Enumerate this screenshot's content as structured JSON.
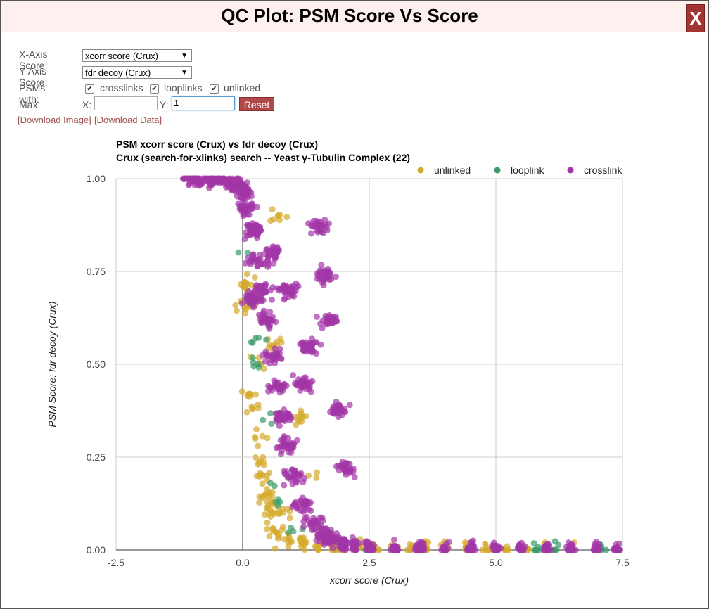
{
  "window": {
    "title": "QC Plot: PSM Score Vs Score",
    "close_label": "X"
  },
  "controls": {
    "x_axis_label": "X-Axis Score:",
    "x_axis_value": "xcorr score (Crux)",
    "y_axis_label": "Y-Axis Score:",
    "y_axis_value": "fdr decoy (Crux)",
    "psms_label": "PSMs with:",
    "checkboxes": [
      {
        "label": "crosslinks",
        "checked": true
      },
      {
        "label": "looplinks",
        "checked": true
      },
      {
        "label": "unlinked",
        "checked": true
      }
    ],
    "max_label": "Max:",
    "max_x_label": "X:",
    "max_x_value": "",
    "max_y_label": "Y:",
    "max_y_value": "1",
    "reset_label": "Reset",
    "download_image": "[Download Image]",
    "download_data": "[Download Data]"
  },
  "chart_data": {
    "type": "scatter",
    "title": "PSM xcorr score (Crux) vs fdr decoy (Crux)",
    "subtitle": "Crux (search-for-xlinks) search -- Yeast γ-Tubulin Complex (22)",
    "xlabel": "xcorr score (Crux)",
    "ylabel": "PSM Score: fdr decoy (Crux)",
    "xlim": [
      -2.5,
      7.5
    ],
    "ylim": [
      0,
      1
    ],
    "xticks": [
      "-2.5",
      "0.0",
      "2.5",
      "5.0",
      "7.5"
    ],
    "yticks": [
      "0.00",
      "0.25",
      "0.50",
      "0.75",
      "1.00"
    ],
    "grid": true,
    "legend_position": "top-right",
    "series": [
      {
        "name": "unlinked",
        "color": "#d4a92c",
        "points": [
          [
            0.05,
            0.72
          ],
          [
            0.1,
            0.66
          ],
          [
            0.15,
            0.42
          ],
          [
            0.2,
            0.38
          ],
          [
            0.25,
            0.3
          ],
          [
            0.3,
            0.28
          ],
          [
            0.35,
            0.24
          ],
          [
            0.4,
            0.2
          ],
          [
            0.45,
            0.15
          ],
          [
            0.5,
            0.12
          ],
          [
            0.55,
            0.09
          ],
          [
            0.6,
            0.05
          ],
          [
            0.7,
            0.03
          ],
          [
            0.9,
            0.02
          ],
          [
            1.2,
            0.02
          ],
          [
            1.5,
            0.01
          ],
          [
            1.8,
            0.01
          ],
          [
            2.0,
            0.01
          ],
          [
            2.3,
            0.005
          ],
          [
            2.6,
            0.002
          ],
          [
            3.0,
            0.001
          ],
          [
            3.3,
            0.001
          ],
          [
            3.6,
            0.001
          ],
          [
            4.0,
            0.0
          ],
          [
            4.4,
            0.0
          ],
          [
            4.8,
            0.0
          ],
          [
            5.2,
            0.0
          ],
          [
            5.6,
            0.0
          ],
          [
            6.0,
            0.0
          ],
          [
            6.5,
            0.0
          ],
          [
            0.7,
            0.9
          ],
          [
            0.6,
            0.55
          ],
          [
            1.1,
            0.35
          ],
          [
            1.3,
            0.2
          ],
          [
            0.8,
            0.1
          ],
          [
            0.35,
            0.5
          ]
        ]
      },
      {
        "name": "looplink",
        "color": "#3a9a6a",
        "points": [
          [
            0.1,
            0.8
          ],
          [
            0.25,
            0.57
          ],
          [
            0.3,
            0.5
          ],
          [
            0.4,
            0.35
          ],
          [
            0.55,
            0.18
          ],
          [
            0.7,
            0.12
          ],
          [
            1.0,
            0.05
          ],
          [
            1.9,
            0.02
          ],
          [
            2.5,
            0.015
          ],
          [
            4.5,
            0.0
          ],
          [
            5.8,
            0.0
          ],
          [
            6.2,
            0.0
          ],
          [
            7.1,
            0.0
          ]
        ]
      },
      {
        "name": "crosslink",
        "color": "#a236a6",
        "points": [
          [
            -1.0,
            1.0
          ],
          [
            -0.8,
            1.0
          ],
          [
            -0.6,
            0.998
          ],
          [
            -0.4,
            0.995
          ],
          [
            -0.2,
            0.99
          ],
          [
            -0.1,
            0.98
          ],
          [
            0.0,
            0.96
          ],
          [
            0.1,
            0.92
          ],
          [
            0.2,
            0.86
          ],
          [
            0.3,
            0.78
          ],
          [
            0.4,
            0.7
          ],
          [
            0.5,
            0.62
          ],
          [
            0.6,
            0.52
          ],
          [
            0.7,
            0.44
          ],
          [
            0.8,
            0.36
          ],
          [
            0.9,
            0.28
          ],
          [
            1.0,
            0.2
          ],
          [
            1.2,
            0.12
          ],
          [
            1.4,
            0.07
          ],
          [
            1.6,
            0.04
          ],
          [
            1.8,
            0.025
          ],
          [
            2.0,
            0.015
          ],
          [
            2.2,
            0.01
          ],
          [
            2.5,
            0.006
          ],
          [
            3.0,
            0.003
          ],
          [
            3.5,
            0.001
          ],
          [
            4.0,
            0.0
          ],
          [
            4.5,
            0.0
          ],
          [
            5.0,
            0.0
          ],
          [
            5.5,
            0.0
          ],
          [
            6.0,
            0.0
          ],
          [
            6.5,
            0.0
          ],
          [
            7.0,
            0.0
          ],
          [
            7.4,
            0.0
          ],
          [
            1.5,
            0.87
          ],
          [
            1.6,
            0.74
          ],
          [
            1.7,
            0.62
          ],
          [
            1.9,
            0.38
          ],
          [
            2.0,
            0.22
          ],
          [
            1.3,
            0.55
          ],
          [
            1.2,
            0.45
          ],
          [
            0.9,
            0.7
          ],
          [
            0.6,
            0.8
          ],
          [
            0.2,
            0.68
          ]
        ]
      }
    ]
  }
}
